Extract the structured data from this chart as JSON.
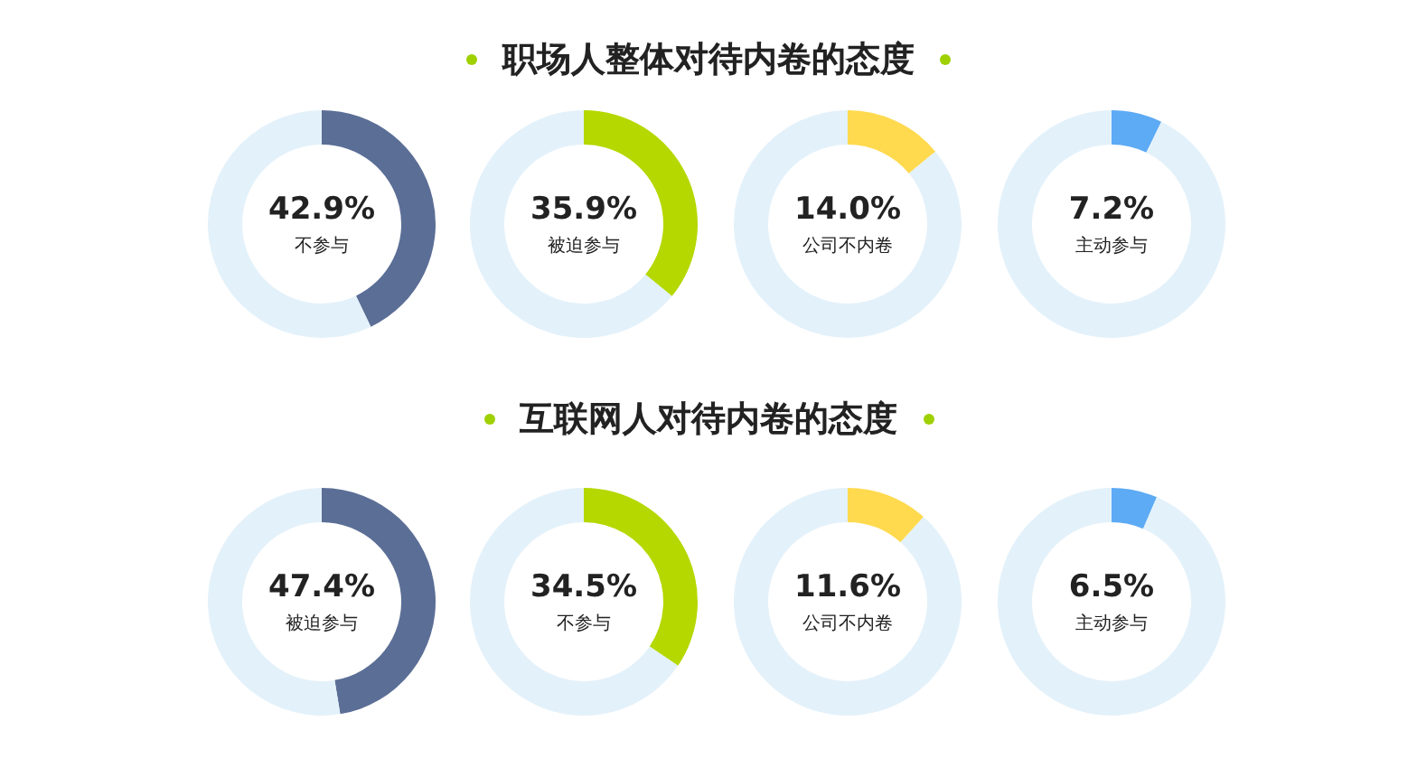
{
  "chart_data": [
    {
      "type": "donut",
      "title": "职场人整体对待内卷的态度",
      "categories": [
        "不参与",
        null
      ],
      "values": [
        42.9,
        57.1
      ],
      "value_labels": [
        "42.9%",
        null
      ],
      "colors": [
        "#5b6e96",
        "#e3f1fa"
      ]
    },
    {
      "type": "donut",
      "categories": [
        "被迫参与",
        null
      ],
      "values": [
        35.9,
        64.1
      ],
      "value_labels": [
        "35.9%",
        null
      ],
      "colors": [
        "#b4d800",
        "#e3f1fa"
      ]
    },
    {
      "type": "donut",
      "categories": [
        "公司不内卷",
        null
      ],
      "values": [
        14.0,
        86.0
      ],
      "value_labels": [
        "14.0%",
        null
      ],
      "colors": [
        "#ffda4f",
        "#e3f1fa"
      ]
    },
    {
      "type": "donut",
      "categories": [
        "主动参与",
        null
      ],
      "values": [
        7.2,
        92.8
      ],
      "value_labels": [
        "7.2%",
        null
      ],
      "colors": [
        "#5daaf5",
        "#e3f1fa"
      ]
    },
    {
      "type": "donut",
      "title": "互联网人对待内卷的态度",
      "categories": [
        "被迫参与",
        null
      ],
      "values": [
        47.4,
        52.6
      ],
      "value_labels": [
        "47.4%",
        null
      ],
      "colors": [
        "#5b6e96",
        "#e3f1fa"
      ]
    },
    {
      "type": "donut",
      "categories": [
        "不参与",
        null
      ],
      "values": [
        34.5,
        65.5
      ],
      "value_labels": [
        "34.5%",
        null
      ],
      "colors": [
        "#b4d800",
        "#e3f1fa"
      ]
    },
    {
      "type": "donut",
      "categories": [
        "公司不内卷",
        null
      ],
      "values": [
        11.6,
        88.4
      ],
      "value_labels": [
        "11.6%",
        null
      ],
      "colors": [
        "#ffda4f",
        "#e3f1fa"
      ]
    },
    {
      "type": "donut",
      "categories": [
        "主动参与",
        null
      ],
      "values": [
        6.5,
        93.5
      ],
      "value_labels": [
        "6.5%",
        null
      ],
      "colors": [
        "#5daaf5",
        "#e3f1fa"
      ]
    }
  ]
}
